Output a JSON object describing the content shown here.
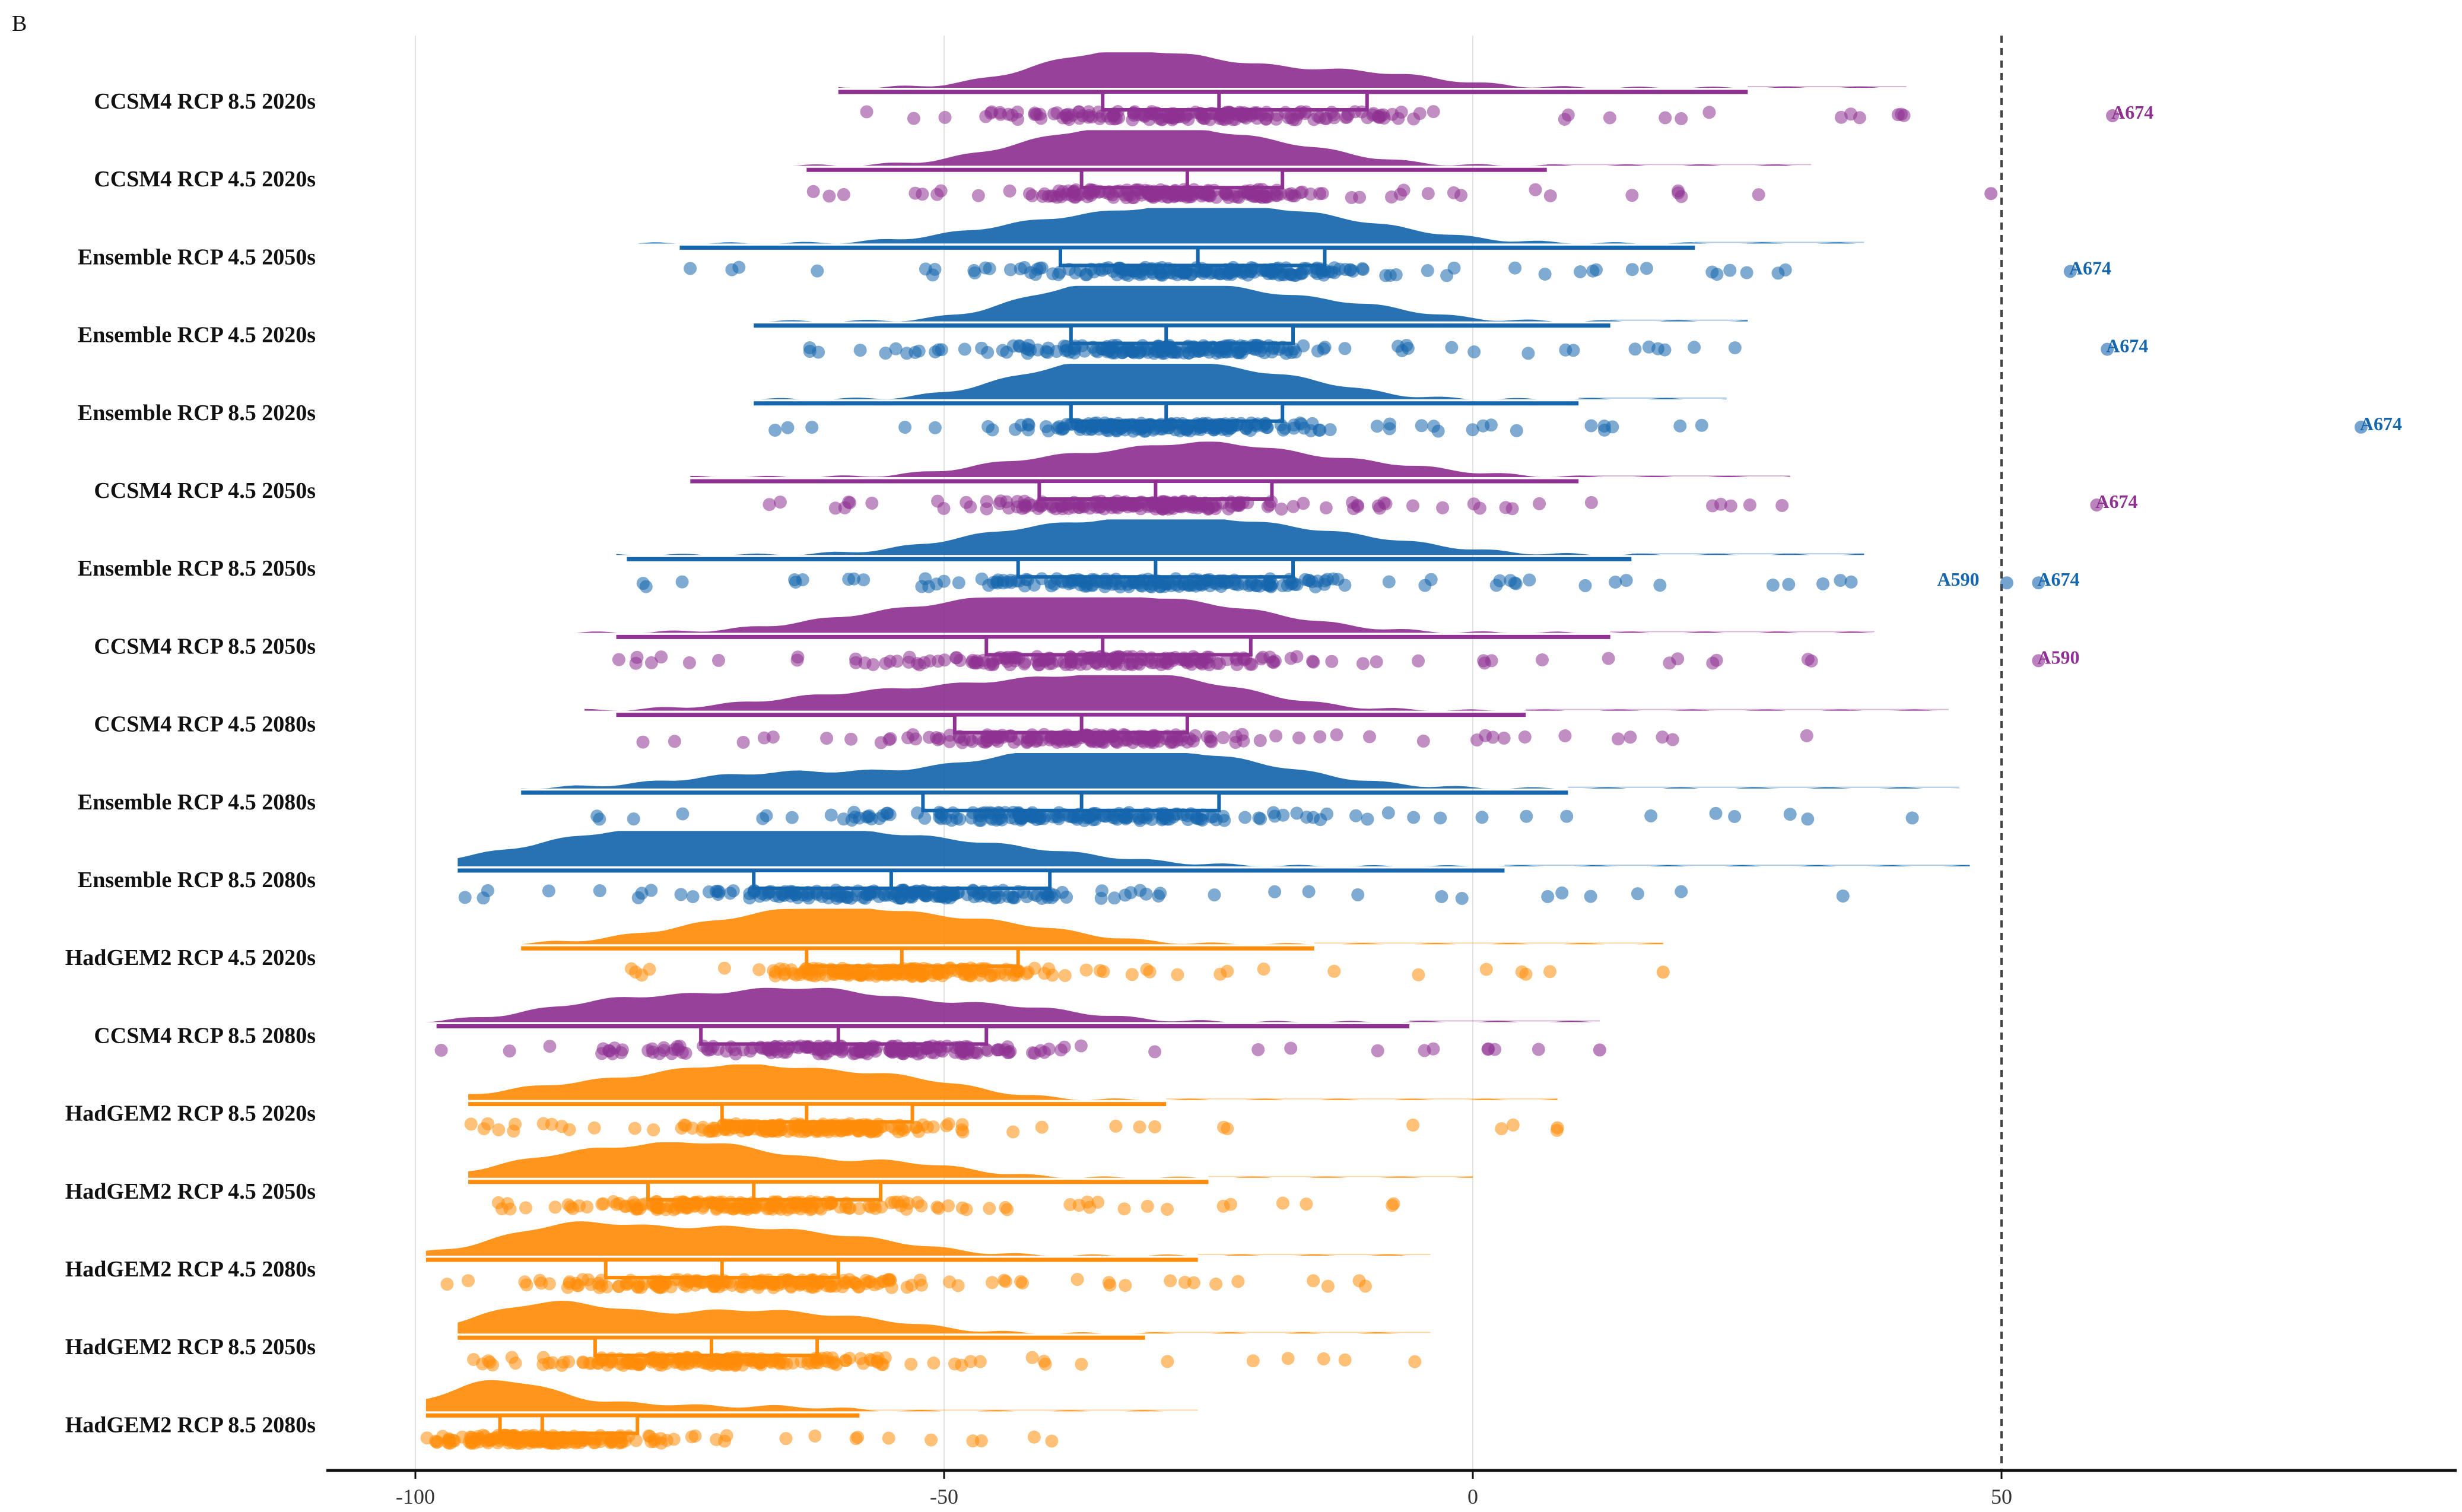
{
  "panel_label": "B",
  "colors": {
    "CCSM4": "#8e3192",
    "Ensemble": "#1666ad",
    "HadGEM2": "#ff8c0a",
    "axis": "#111111",
    "grid": "#e3e3e3",
    "refline": "#444444"
  },
  "chart_data": {
    "type": "raincloud",
    "orientation": "horizontal",
    "xlim": [
      -110,
      92
    ],
    "xticks": [
      -100,
      -50,
      0,
      50
    ],
    "xtick_labels": [
      "-100",
      "-50",
      "0",
      "50"
    ],
    "reference_line": 50,
    "grid": "vertical",
    "rows": [
      {
        "label": "CCSM4 RCP 8.5 2020s",
        "model": "CCSM4",
        "whisker": [
          -60,
          26
        ],
        "q1": -35,
        "median": -24,
        "q3": -10,
        "range": [
          -60,
          41
        ],
        "peaks": [
          [
            -35,
            1.0
          ],
          [
            -24,
            0.55
          ],
          [
            -10,
            0.45
          ]
        ],
        "outliers": [
          60.5
        ],
        "annotations": [
          {
            "text": "A674",
            "x": 60.5
          }
        ]
      },
      {
        "label": "CCSM4 RCP 4.5 2020s",
        "model": "CCSM4",
        "whisker": [
          -63,
          7
        ],
        "q1": -37,
        "median": -27,
        "q3": -18,
        "range": [
          -65,
          32
        ],
        "peaks": [
          [
            -30,
            1.0
          ],
          [
            -40,
            0.6
          ],
          [
            -18,
            0.55
          ]
        ],
        "outliers": [
          49
        ],
        "annotations": []
      },
      {
        "label": "Ensemble RCP 4.5 2050s",
        "model": "Ensemble",
        "whisker": [
          -75,
          21
        ],
        "q1": -39,
        "median": -26,
        "q3": -14,
        "range": [
          -82,
          37
        ],
        "peaks": [
          [
            -25,
            1.0
          ],
          [
            -40,
            0.6
          ],
          [
            -12,
            0.5
          ]
        ],
        "outliers": [
          56.5
        ],
        "annotations": [
          {
            "text": "A674",
            "x": 56.5
          }
        ]
      },
      {
        "label": "Ensemble RCP 4.5 2020s",
        "model": "Ensemble",
        "whisker": [
          -68,
          13
        ],
        "q1": -38,
        "median": -29,
        "q3": -17,
        "range": [
          -69,
          26
        ],
        "peaks": [
          [
            -37,
            1.0
          ],
          [
            -25,
            0.9
          ],
          [
            -12,
            0.5
          ]
        ],
        "outliers": [
          60
        ],
        "annotations": [
          {
            "text": "A674",
            "x": 60
          }
        ]
      },
      {
        "label": "Ensemble RCP 8.5 2020s",
        "model": "Ensemble",
        "whisker": [
          -68,
          10
        ],
        "q1": -38,
        "median": -29,
        "q3": -18,
        "range": [
          -68,
          24
        ],
        "peaks": [
          [
            -30,
            1.0
          ],
          [
            -40,
            0.7
          ],
          [
            -18,
            0.6
          ]
        ],
        "outliers": [
          84
        ],
        "annotations": [
          {
            "text": "A674",
            "x": 84
          }
        ]
      },
      {
        "label": "CCSM4 RCP 4.5 2050s",
        "model": "CCSM4",
        "whisker": [
          -74,
          10
        ],
        "q1": -41,
        "median": -30,
        "q3": -19,
        "range": [
          -74,
          30
        ],
        "peaks": [
          [
            -25,
            1.0
          ],
          [
            -40,
            0.55
          ],
          [
            -10,
            0.4
          ]
        ],
        "outliers": [
          59
        ],
        "annotations": [
          {
            "text": "A674",
            "x": 59
          }
        ]
      },
      {
        "label": "Ensemble RCP 8.5 2050s",
        "model": "Ensemble",
        "whisker": [
          -80,
          15
        ],
        "q1": -43,
        "median": -30,
        "q3": -17,
        "range": [
          -81,
          37
        ],
        "peaks": [
          [
            -27,
            1.0
          ],
          [
            -42,
            0.7
          ],
          [
            -12,
            0.5
          ]
        ],
        "outliers": [
          50.5,
          53.5
        ],
        "annotations": [
          {
            "text": "A590",
            "x": 47,
            "dx": -55
          },
          {
            "text": "A674",
            "x": 53.5
          }
        ]
      },
      {
        "label": "CCSM4 RCP 8.5 2050s",
        "model": "CCSM4",
        "whisker": [
          -81,
          13
        ],
        "q1": -46,
        "median": -35,
        "q3": -21,
        "range": [
          -88,
          38
        ],
        "peaks": [
          [
            -40,
            1.0
          ],
          [
            -25,
            0.7
          ],
          [
            -55,
            0.5
          ]
        ],
        "outliers": [
          53.5
        ],
        "annotations": [
          {
            "text": "A590",
            "x": 53.5
          }
        ]
      },
      {
        "label": "CCSM4 RCP 4.5 2080s",
        "model": "CCSM4",
        "whisker": [
          -81,
          5
        ],
        "q1": -49,
        "median": -37,
        "q3": -27,
        "range": [
          -84,
          45
        ],
        "peaks": [
          [
            -30,
            1.0
          ],
          [
            -45,
            0.6
          ],
          [
            -60,
            0.4
          ]
        ],
        "outliers": [],
        "annotations": []
      },
      {
        "label": "Ensemble RCP 4.5 2080s",
        "model": "Ensemble",
        "whisker": [
          -90,
          9
        ],
        "q1": -52,
        "median": -37,
        "q3": -24,
        "range": [
          -90,
          46
        ],
        "peaks": [
          [
            -40,
            1.0
          ],
          [
            -25,
            0.8
          ],
          [
            -65,
            0.5
          ]
        ],
        "outliers": [],
        "annotations": []
      },
      {
        "label": "Ensemble RCP 8.5 2080s",
        "model": "Ensemble",
        "whisker": [
          -96,
          3
        ],
        "q1": -68,
        "median": -55,
        "q3": -40,
        "range": [
          -96,
          47
        ],
        "peaks": [
          [
            -80,
            1.0
          ],
          [
            -62,
            0.9
          ],
          [
            -45,
            0.5
          ]
        ],
        "outliers": [],
        "annotations": []
      },
      {
        "label": "HadGEM2 RCP 4.5 2020s",
        "model": "HadGEM2",
        "whisker": [
          -90,
          -15
        ],
        "q1": -63,
        "median": -54,
        "q3": -43,
        "range": [
          -90,
          18
        ],
        "peaks": [
          [
            -60,
            1.0
          ],
          [
            -45,
            0.6
          ],
          [
            -72,
            0.45
          ]
        ],
        "outliers": [
          18
        ],
        "annotations": []
      },
      {
        "label": "CCSM4 RCP 8.5 2080s",
        "model": "CCSM4",
        "whisker": [
          -98,
          -6
        ],
        "q1": -73,
        "median": -60,
        "q3": -46,
        "range": [
          -99,
          12
        ],
        "peaks": [
          [
            -63,
            1.0
          ],
          [
            -80,
            0.7
          ],
          [
            -45,
            0.5
          ]
        ],
        "outliers": [
          12
        ],
        "annotations": []
      },
      {
        "label": "HadGEM2 RCP 8.5 2020s",
        "model": "HadGEM2",
        "whisker": [
          -95,
          -29
        ],
        "q1": -71,
        "median": -63,
        "q3": -53,
        "range": [
          -95,
          8
        ],
        "peaks": [
          [
            -70,
            1.0
          ],
          [
            -55,
            0.7
          ],
          [
            -85,
            0.45
          ]
        ],
        "outliers": [
          8
        ],
        "annotations": []
      },
      {
        "label": "HadGEM2 RCP 4.5 2050s",
        "model": "HadGEM2",
        "whisker": [
          -95,
          -25
        ],
        "q1": -78,
        "median": -68,
        "q3": -56,
        "range": [
          -95,
          0
        ],
        "peaks": [
          [
            -72,
            1.0
          ],
          [
            -85,
            0.7
          ],
          [
            -55,
            0.5
          ]
        ],
        "outliers": [],
        "annotations": []
      },
      {
        "label": "HadGEM2 RCP 4.5 2080s",
        "model": "HadGEM2",
        "whisker": [
          -99,
          -26
        ],
        "q1": -82,
        "median": -71,
        "q3": -60,
        "range": [
          -99,
          -4
        ],
        "peaks": [
          [
            -85,
            1.0
          ],
          [
            -70,
            0.75
          ],
          [
            -58,
            0.45
          ]
        ],
        "outliers": [],
        "annotations": []
      },
      {
        "label": "HadGEM2 RCP 8.5 2050s",
        "model": "HadGEM2",
        "whisker": [
          -96,
          -31
        ],
        "q1": -83,
        "median": -72,
        "q3": -62,
        "range": [
          -96,
          -4
        ],
        "peaks": [
          [
            -87,
            1.0
          ],
          [
            -70,
            0.65
          ],
          [
            -58,
            0.4
          ]
        ],
        "outliers": [],
        "annotations": []
      },
      {
        "label": "HadGEM2 RCP 8.5 2080s",
        "model": "HadGEM2",
        "whisker": [
          -99,
          -58
        ],
        "q1": -92,
        "median": -88,
        "q3": -79,
        "range": [
          -99,
          -26
        ],
        "peaks": [
          [
            -92,
            1.0
          ],
          [
            -78,
            0.22
          ],
          [
            -65,
            0.15
          ]
        ],
        "outliers": [],
        "annotations": []
      }
    ]
  }
}
